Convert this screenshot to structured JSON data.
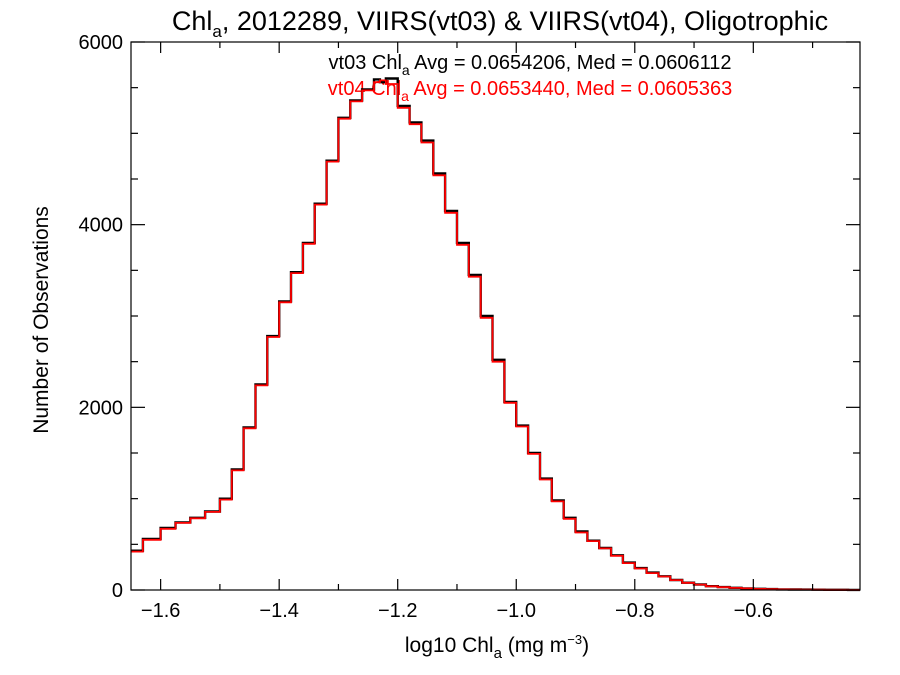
{
  "chart_data": {
    "type": "histogram-step",
    "title": {
      "base": "Chl",
      "sub": "a",
      "rest": ", 2012289, VIIRS(vt03) & VIIRS(vt04), Oligotrophic"
    },
    "xlabel": {
      "base": "log10 Chl",
      "sub": "a",
      "mid": " (mg m",
      "sup": "−3",
      "end": ")"
    },
    "ylabel": "Number of Observations",
    "xlim": [
      -1.65,
      -0.42
    ],
    "ylim": [
      0,
      6000
    ],
    "x_ticks": [
      -1.6,
      -1.4,
      -1.2,
      -1.0,
      -0.8,
      -0.6
    ],
    "x_tick_labels": [
      "−1.6",
      "−1.4",
      "−1.2",
      "−1.0",
      "−0.8",
      "−0.6"
    ],
    "x_minor_step": 0.1,
    "y_ticks": [
      0,
      2000,
      4000,
      6000
    ],
    "y_tick_labels": [
      "0",
      "2000",
      "4000",
      "6000"
    ],
    "y_minor_step": 500,
    "grid": false,
    "annotations": [
      {
        "pre": "vt03 Chl",
        "sub": "a",
        "post": " Avg = 0.0654206, Med = 0.0606112",
        "color": "#000000"
      },
      {
        "pre": "vt04 Chl",
        "sub": "a",
        "post": " Avg = 0.0653440, Med = 0.0605363",
        "color": "#ff0000"
      }
    ],
    "x": [
      -1.65,
      -1.63,
      -1.6,
      -1.575,
      -1.55,
      -1.525,
      -1.5,
      -1.48,
      -1.46,
      -1.44,
      -1.42,
      -1.4,
      -1.38,
      -1.36,
      -1.34,
      -1.32,
      -1.3,
      -1.28,
      -1.26,
      -1.24,
      -1.23,
      -1.22,
      -1.2,
      -1.18,
      -1.16,
      -1.14,
      -1.12,
      -1.1,
      -1.08,
      -1.06,
      -1.04,
      -1.02,
      -1.0,
      -0.98,
      -0.96,
      -0.94,
      -0.92,
      -0.9,
      -0.88,
      -0.86,
      -0.84,
      -0.82,
      -0.8,
      -0.78,
      -0.76,
      -0.74,
      -0.72,
      -0.7,
      -0.68,
      -0.66,
      -0.64,
      -0.62,
      -0.6,
      -0.58,
      -0.56,
      -0.54,
      -0.52,
      -0.5,
      -0.48,
      -0.46,
      -0.44,
      -0.42
    ],
    "series": [
      {
        "name": "vt03",
        "color": "#000000",
        "values": [
          430,
          560,
          680,
          740,
          790,
          860,
          1000,
          1320,
          1780,
          2250,
          2780,
          3160,
          3480,
          3800,
          4230,
          4700,
          5170,
          5360,
          5480,
          5590,
          5560,
          5600,
          5300,
          5120,
          4920,
          4560,
          4150,
          3800,
          3450,
          3000,
          2520,
          2060,
          1800,
          1500,
          1220,
          980,
          790,
          640,
          540,
          460,
          380,
          300,
          240,
          190,
          150,
          110,
          80,
          60,
          42,
          32,
          24,
          18,
          13,
          10,
          7,
          5,
          4,
          3,
          2,
          2,
          1,
          1
        ]
      },
      {
        "name": "vt04",
        "color": "#ff0000",
        "values": [
          420,
          550,
          670,
          735,
          785,
          855,
          990,
          1310,
          1770,
          2240,
          2770,
          3150,
          3470,
          3790,
          4220,
          4690,
          5160,
          5350,
          5470,
          5560,
          5580,
          5540,
          5280,
          5100,
          4900,
          4540,
          4130,
          3780,
          3430,
          2980,
          2500,
          2050,
          1790,
          1490,
          1210,
          970,
          780,
          630,
          535,
          455,
          375,
          295,
          235,
          185,
          148,
          108,
          79,
          59,
          41,
          31,
          23,
          17,
          12,
          9,
          7,
          5,
          4,
          3,
          2,
          2,
          1,
          1
        ]
      }
    ]
  }
}
